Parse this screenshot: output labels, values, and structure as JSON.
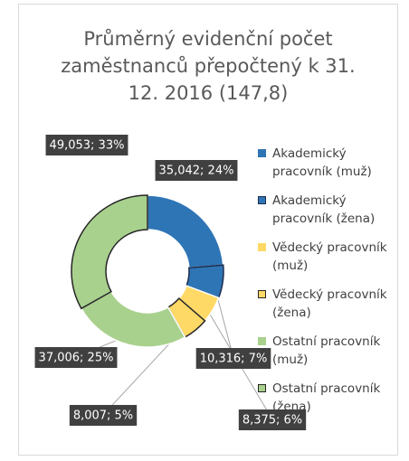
{
  "chart_data": {
    "type": "donut",
    "title": "Průměrný evidenční počet zaměstnanců přepočtený k 31. 12. 2016 (147,8)",
    "categories": [
      "Akademický pracovník (muž)",
      "Akademický pracovník (žena)",
      "Vědecký pracovník (muž)",
      "Vědecký pracovník (žena)",
      "Ostatní pracovník (muž)",
      "Ostatní pracovník (žena)"
    ],
    "values": [
      35.042,
      10.316,
      8.375,
      8.007,
      37.006,
      49.053
    ],
    "value_labels": [
      "35,042; 24%",
      "10,316; 7%",
      "8,375; 6%",
      "8,007; 5%",
      "37,006; 25%",
      "49,053; 33%"
    ],
    "colors": [
      "#2e75b6",
      "#2e75b6",
      "#ffd966",
      "#ffd966",
      "#a9d18e",
      "#a9d18e"
    ],
    "edgecolors": [
      "#ffffff",
      "#1f2d4d",
      "#ffffff",
      "#262626",
      "#ffffff",
      "#262626"
    ]
  }
}
